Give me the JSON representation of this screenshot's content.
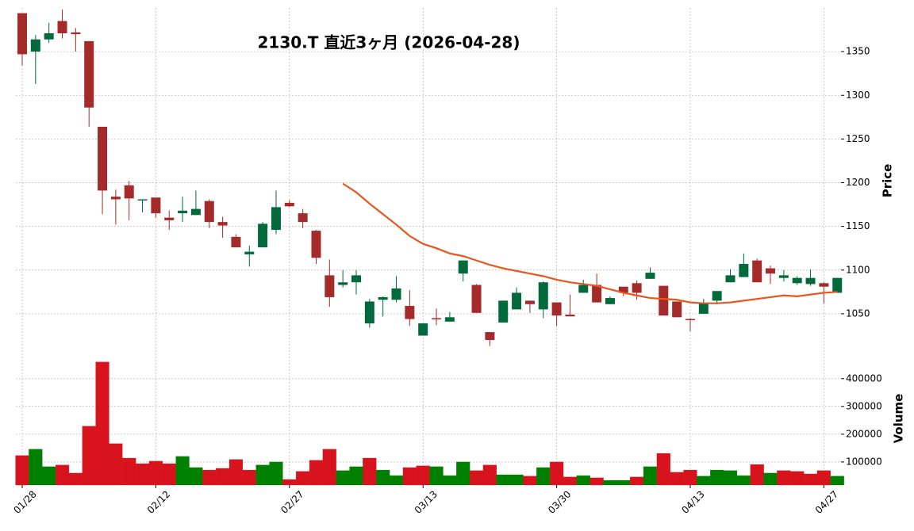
{
  "chart_data": {
    "type": "candlestick",
    "title": "2130.T  直近3ヶ月  (2026-04-28)",
    "categories": [
      "01/28",
      null,
      null,
      null,
      null,
      null,
      null,
      null,
      null,
      null,
      "02/12",
      null,
      null,
      null,
      null,
      null,
      null,
      null,
      null,
      null,
      "02/27",
      null,
      null,
      null,
      null,
      null,
      null,
      null,
      null,
      null,
      "03/13",
      null,
      null,
      null,
      null,
      null,
      null,
      null,
      null,
      null,
      "03/30",
      null,
      null,
      null,
      null,
      null,
      null,
      null,
      null,
      null,
      "04/13",
      null,
      null,
      null,
      null,
      null,
      null,
      null,
      null,
      null,
      "04/27",
      null
    ],
    "open": [
      1394,
      1350,
      1364,
      1385,
      1372,
      1362,
      1264,
      1184,
      1197,
      1180,
      1183,
      1160,
      1165,
      1163,
      1179,
      1155,
      1138,
      1118,
      1126,
      1146,
      1177,
      1165,
      1145,
      1094,
      1083,
      1086,
      1039,
      1066,
      1066,
      1059,
      1025,
      1045,
      1041,
      1096,
      1083,
      1029,
      1040,
      1055,
      1065,
      1055,
      1063,
      1049,
      1074,
      1083,
      1061,
      1081,
      1085,
      1090,
      1082,
      1064,
      1044,
      1050,
      1065,
      1086,
      1092,
      1111,
      1102,
      1091,
      1085,
      1084,
      1085,
      1074
    ],
    "high": [
      1394,
      1369,
      1383,
      1398,
      1377,
      1362,
      1264,
      1192,
      1202,
      1181,
      1183,
      1168,
      1184,
      1191,
      1181,
      1161,
      1141,
      1128,
      1155,
      1191,
      1180,
      1170,
      1146,
      1112,
      1100,
      1100,
      1067,
      1070,
      1093,
      1077,
      1039,
      1056,
      1052,
      1111,
      1084,
      1029,
      1065,
      1080,
      1065,
      1087,
      1063,
      1072,
      1089,
      1096,
      1070,
      1081,
      1088,
      1103,
      1082,
      1064,
      1045,
      1067,
      1076,
      1101,
      1119,
      1113,
      1105,
      1100,
      1093,
      1101,
      1086,
      1091
    ],
    "low": [
      1334,
      1313,
      1360,
      1365,
      1350,
      1264,
      1164,
      1152,
      1157,
      1166,
      1160,
      1146,
      1155,
      1163,
      1148,
      1137,
      1126,
      1104,
      1126,
      1141,
      1172,
      1148,
      1107,
      1058,
      1080,
      1072,
      1034,
      1047,
      1063,
      1036,
      1025,
      1037,
      1041,
      1087,
      1051,
      1013,
      1040,
      1055,
      1051,
      1045,
      1036,
      1047,
      1074,
      1063,
      1061,
      1070,
      1066,
      1090,
      1048,
      1046,
      1030,
      1050,
      1061,
      1086,
      1092,
      1086,
      1084,
      1087,
      1083,
      1082,
      1062,
      1074
    ],
    "close": [
      1347,
      1364,
      1371,
      1371,
      1370,
      1286,
      1191,
      1181,
      1182,
      1181,
      1165,
      1157,
      1168,
      1170,
      1155,
      1151,
      1126,
      1121,
      1153,
      1172,
      1173,
      1155,
      1114,
      1069,
      1086,
      1094,
      1064,
      1069,
      1079,
      1044,
      1039,
      1044,
      1046,
      1111,
      1051,
      1020,
      1065,
      1074,
      1061,
      1086,
      1048,
      1047,
      1083,
      1063,
      1068,
      1074,
      1074,
      1097,
      1048,
      1046,
      1043,
      1062,
      1076,
      1094,
      1107,
      1086,
      1096,
      1094,
      1091,
      1091,
      1081,
      1091
    ],
    "up_color": "#006a3c",
    "down_color": "#a52a2a",
    "moving_average": {
      "color": "#e8561c",
      "values": [
        null,
        null,
        null,
        null,
        null,
        null,
        null,
        null,
        null,
        null,
        null,
        null,
        null,
        null,
        null,
        null,
        null,
        null,
        null,
        null,
        null,
        null,
        null,
        null,
        1199,
        1189,
        1176,
        1164,
        1152,
        1139,
        1130,
        1125,
        1119,
        1116,
        1111,
        1106,
        1102,
        1099,
        1096,
        1093,
        1089,
        1086,
        1084,
        1082,
        1078,
        1074,
        1071,
        1068,
        1067,
        1066,
        1063,
        1062,
        1062,
        1063,
        1065,
        1067,
        1069,
        1071,
        1070,
        1072,
        1074,
        1075
      ]
    },
    "volume": {
      "values": [
        123000,
        146000,
        83000,
        89000,
        60000,
        229000,
        460000,
        166000,
        114000,
        94000,
        103000,
        94000,
        120000,
        80000,
        71000,
        77000,
        109000,
        71000,
        89000,
        100000,
        37000,
        66000,
        106000,
        146000,
        69000,
        83000,
        114000,
        71000,
        51000,
        80000,
        86000,
        83000,
        51000,
        100000,
        69000,
        89000,
        54000,
        54000,
        49000,
        80000,
        100000,
        46000,
        51000,
        43000,
        34000,
        34000,
        46000,
        83000,
        131000,
        63000,
        71000,
        49000,
        71000,
        69000,
        51000,
        91000,
        60000,
        69000,
        66000,
        57000,
        69000,
        49000
      ],
      "colors": [
        "#d7141e",
        "#008000",
        "#008000",
        "#d7141e",
        "#d7141e",
        "#d7141e",
        "#d7141e",
        "#d7141e",
        "#d7141e",
        "#d7141e",
        "#d7141e",
        "#d7141e",
        "#008000",
        "#008000",
        "#d7141e",
        "#d7141e",
        "#d7141e",
        "#d7141e",
        "#008000",
        "#008000",
        "#d7141e",
        "#d7141e",
        "#d7141e",
        "#d7141e",
        "#008000",
        "#008000",
        "#d7141e",
        "#008000",
        "#008000",
        "#d7141e",
        "#d7141e",
        "#008000",
        "#008000",
        "#008000",
        "#d7141e",
        "#d7141e",
        "#008000",
        "#008000",
        "#d7141e",
        "#008000",
        "#d7141e",
        "#d7141e",
        "#008000",
        "#d7141e",
        "#008000",
        "#008000",
        "#d7141e",
        "#008000",
        "#d7141e",
        "#d7141e",
        "#d7141e",
        "#008000",
        "#008000",
        "#008000",
        "#008000",
        "#d7141e",
        "#008000",
        "#d7141e",
        "#d7141e",
        "#d7141e",
        "#d7141e",
        "#008000"
      ],
      "ylim": [
        17000,
        485000
      ],
      "yticks": [
        100000,
        200000,
        300000,
        400000
      ],
      "ylabel": "Volume"
    },
    "ylim": [
      1010,
      1400
    ],
    "yticks": [
      1050,
      1100,
      1150,
      1200,
      1250,
      1300,
      1350
    ],
    "ylabel": "Price",
    "grid": true
  }
}
